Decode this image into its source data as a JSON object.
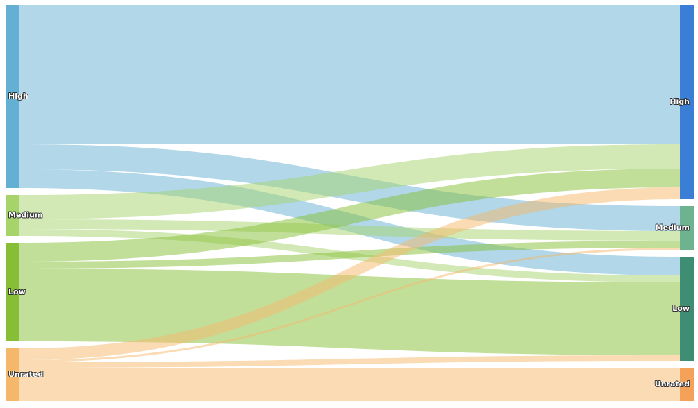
{
  "chart_data": {
    "type": "sankey",
    "nodes": [
      {
        "name": "High",
        "color": "#63b0d4"
      },
      {
        "name": "Medium",
        "color": "#a6d46b"
      },
      {
        "name": "Low",
        "color": "#86bf36"
      },
      {
        "name": "Unrated",
        "color": "#f5b86a"
      },
      {
        "name": "High",
        "color": "#3a7fd5"
      },
      {
        "name": "Medium",
        "color": "#6db38f"
      },
      {
        "name": "Low",
        "color": "#3f8e74"
      },
      {
        "name": "Unrated",
        "color": "#f4a25a"
      }
    ],
    "links": [
      {
        "source": 0,
        "target": 4,
        "value": 201
      },
      {
        "source": 0,
        "target": 5,
        "value": 36
      },
      {
        "source": 0,
        "target": 6,
        "value": 27
      },
      {
        "source": 1,
        "target": 4,
        "value": 35
      },
      {
        "source": 1,
        "target": 5,
        "value": 14
      },
      {
        "source": 1,
        "target": 6,
        "value": 10
      },
      {
        "source": 2,
        "target": 4,
        "value": 27
      },
      {
        "source": 2,
        "target": 5,
        "value": 10
      },
      {
        "source": 2,
        "target": 6,
        "value": 105
      },
      {
        "source": 3,
        "target": 4,
        "value": 17
      },
      {
        "source": 3,
        "target": 5,
        "value": 3
      },
      {
        "source": 3,
        "target": 6,
        "value": 8
      },
      {
        "source": 3,
        "target": 7,
        "value": 48
      }
    ]
  }
}
